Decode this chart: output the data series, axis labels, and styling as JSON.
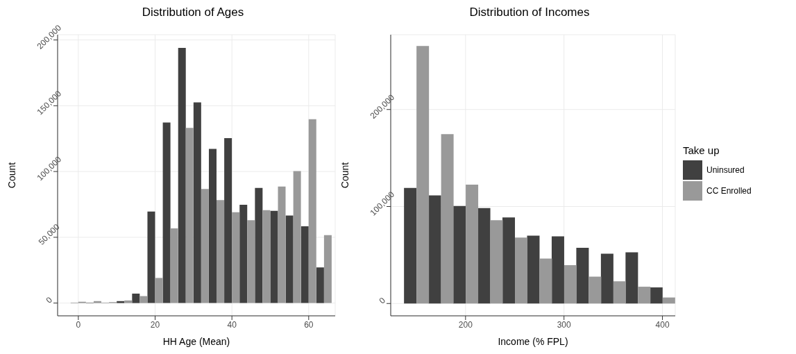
{
  "chart_data": [
    {
      "type": "histogram",
      "title": "Distribution of Ages",
      "xlabel": "HH Age (Mean)",
      "ylabel": "Count",
      "bins": [
        -2,
        2,
        6,
        10,
        14,
        18,
        22,
        26,
        30,
        34,
        38,
        42,
        46,
        50,
        54,
        58,
        62,
        66
      ],
      "series": [
        {
          "color": "#404040",
          "values": [
            200,
            300,
            200,
            1500,
            7200,
            69600,
            137200,
            194000,
            152600,
            117200,
            125400,
            74700,
            87500,
            70100,
            66600,
            58400,
            27100
          ]
        },
        {
          "color": "#999999",
          "values": [
            1000,
            1500,
            700,
            2000,
            5300,
            19100,
            56800,
            133100,
            86700,
            78300,
            69100,
            63000,
            70600,
            88600,
            100300,
            139800,
            51700
          ]
        }
      ],
      "xlim": [
        -5.4,
        66.9
      ],
      "xticks": [
        0,
        20,
        40,
        60
      ],
      "ylim": [
        -9700,
        204000
      ],
      "yticks": [
        0,
        {
          "value": 50000,
          "label": "50,000"
        },
        {
          "value": 100000,
          "label": "100,000"
        },
        {
          "value": 150000,
          "label": "150,000"
        },
        {
          "value": 200000,
          "label": "200,000"
        }
      ],
      "grid": true,
      "legend": false
    },
    {
      "type": "histogram",
      "title": "Distribution of Incomes",
      "xlabel": "Income (% FPL)",
      "ylabel": "Count",
      "legend_title": "Take up",
      "bins": [
        137.5,
        162.5,
        187.5,
        212.5,
        237.5,
        262.5,
        287.5,
        312.5,
        337.5,
        362.5,
        387.5,
        412.5
      ],
      "series": [
        {
          "name": "Uninsured",
          "color": "#404040",
          "values": [
            119200,
            111500,
            100500,
            98400,
            88700,
            70000,
            69300,
            57500,
            51300,
            52700,
            16600
          ]
        },
        {
          "name": "CC Enrolled",
          "color": "#999999",
          "values": [
            265400,
            174600,
            122600,
            85900,
            67900,
            46400,
            39500,
            27700,
            22900,
            17300,
            6200
          ]
        }
      ],
      "xlim": [
        124,
        413
      ],
      "xticks": [
        200,
        300,
        400
      ],
      "ylim": [
        -12700,
        277100
      ],
      "yticks": [
        0,
        {
          "value": 100000,
          "label": "100,000"
        },
        {
          "value": 200000,
          "label": "200,000"
        }
      ],
      "grid": true,
      "legend": "right"
    }
  ]
}
